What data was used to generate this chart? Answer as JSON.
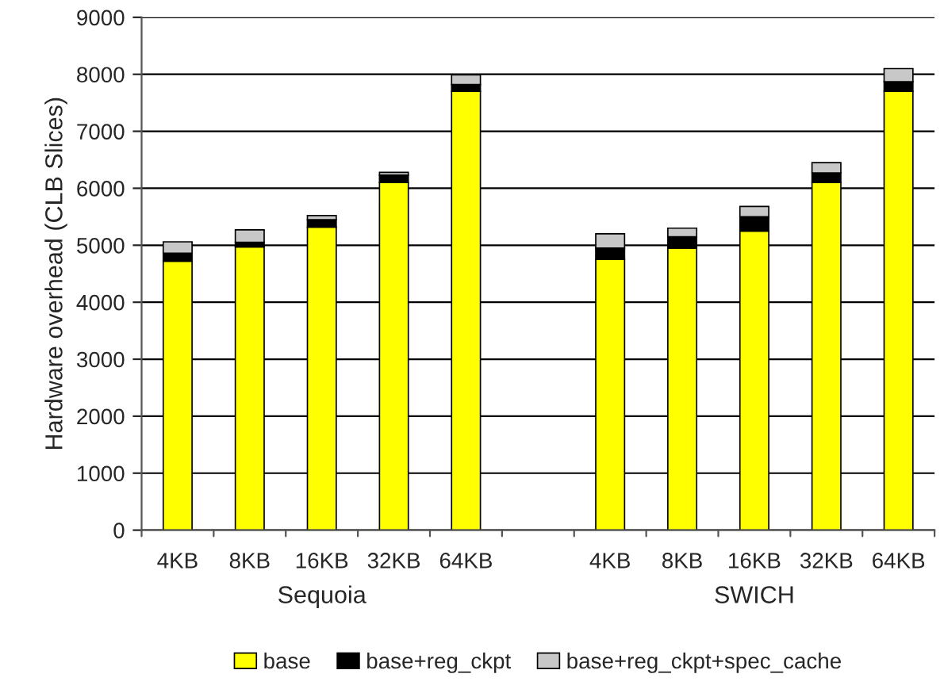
{
  "chart_data": {
    "type": "bar",
    "stacked": true,
    "ylabel": "Hardware overhead (CLB Slices)",
    "categories": [
      "4KB",
      "8KB",
      "16KB",
      "32KB",
      "64KB",
      null,
      "4KB",
      "8KB",
      "16KB",
      "32KB",
      "64KB"
    ],
    "series": [
      {
        "name": "base",
        "color": "#ffff00",
        "values": [
          4720,
          4970,
          5320,
          6100,
          7700,
          null,
          4750,
          4950,
          5250,
          6100,
          7700
        ]
      },
      {
        "name": "base+reg_ckpt",
        "color": "#000000",
        "values": [
          140,
          80,
          130,
          130,
          120,
          null,
          200,
          200,
          250,
          170,
          170
        ]
      },
      {
        "name": "base+reg_ckpt+spec_cache",
        "color": "#c8c8c8",
        "values": [
          200,
          220,
          70,
          50,
          170,
          null,
          250,
          150,
          180,
          180,
          230
        ]
      }
    ],
    "annotations": [
      "Sequoia",
      "SWICH"
    ],
    "ylim": [
      0,
      9000
    ],
    "yticks": [
      0,
      1000,
      2000,
      3000,
      4000,
      5000,
      6000,
      7000,
      8000,
      9000
    ],
    "grid": "y",
    "legend": "bottom"
  }
}
